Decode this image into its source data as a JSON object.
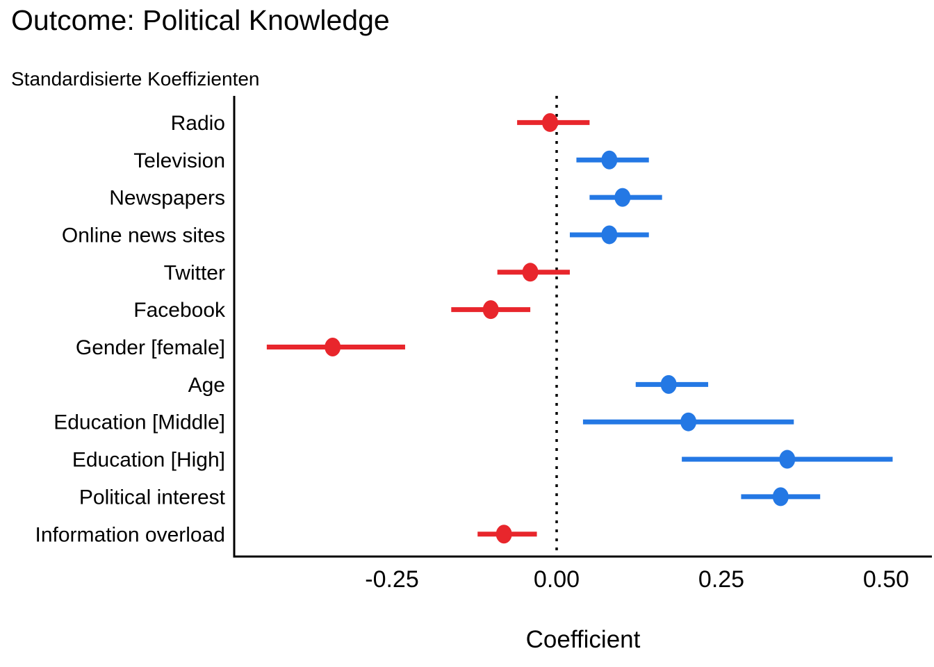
{
  "header": {
    "title": "Outcome: Political Knowledge",
    "subtitle": "Standardisierte Koeffizienten"
  },
  "chart_data": {
    "type": "scatter",
    "subtype": "coefficient_forest_plot",
    "title": "Outcome: Political Knowledge",
    "subtitle": "Standardisierte Koeffizienten",
    "xlabel": "Coefficient",
    "ylabel": "",
    "xlim": [
      -0.49,
      0.57
    ],
    "x_ticks": [
      -0.25,
      0.0,
      0.25,
      0.5
    ],
    "x_tick_labels": [
      "-0.25",
      "0.00",
      "0.25",
      "0.50"
    ],
    "grid": false,
    "legend_position": "none",
    "zero_reference_line": {
      "x": 0.0,
      "style": "dotted",
      "color": "#000000"
    },
    "colors": {
      "positive": "#2478E4",
      "negative": "#E8262C",
      "axis": "#000000"
    },
    "points": [
      {
        "label": "Radio",
        "estimate": -0.01,
        "ci_low": -0.06,
        "ci_high": 0.05,
        "direction": "negative"
      },
      {
        "label": "Television",
        "estimate": 0.08,
        "ci_low": 0.03,
        "ci_high": 0.14,
        "direction": "positive"
      },
      {
        "label": "Newspapers",
        "estimate": 0.1,
        "ci_low": 0.05,
        "ci_high": 0.16,
        "direction": "positive"
      },
      {
        "label": "Online news sites",
        "estimate": 0.08,
        "ci_low": 0.02,
        "ci_high": 0.14,
        "direction": "positive"
      },
      {
        "label": "Twitter",
        "estimate": -0.04,
        "ci_low": -0.09,
        "ci_high": 0.02,
        "direction": "negative"
      },
      {
        "label": "Facebook",
        "estimate": -0.1,
        "ci_low": -0.16,
        "ci_high": -0.04,
        "direction": "negative"
      },
      {
        "label": "Gender [female]",
        "estimate": -0.34,
        "ci_low": -0.44,
        "ci_high": -0.23,
        "direction": "negative"
      },
      {
        "label": "Age",
        "estimate": 0.17,
        "ci_low": 0.12,
        "ci_high": 0.23,
        "direction": "positive"
      },
      {
        "label": "Education [Middle]",
        "estimate": 0.2,
        "ci_low": 0.04,
        "ci_high": 0.36,
        "direction": "positive"
      },
      {
        "label": "Education [High]",
        "estimate": 0.35,
        "ci_low": 0.19,
        "ci_high": 0.51,
        "direction": "positive"
      },
      {
        "label": "Political interest",
        "estimate": 0.34,
        "ci_low": 0.28,
        "ci_high": 0.4,
        "direction": "positive"
      },
      {
        "label": "Information overload",
        "estimate": -0.08,
        "ci_low": -0.12,
        "ci_high": -0.03,
        "direction": "negative"
      }
    ]
  }
}
